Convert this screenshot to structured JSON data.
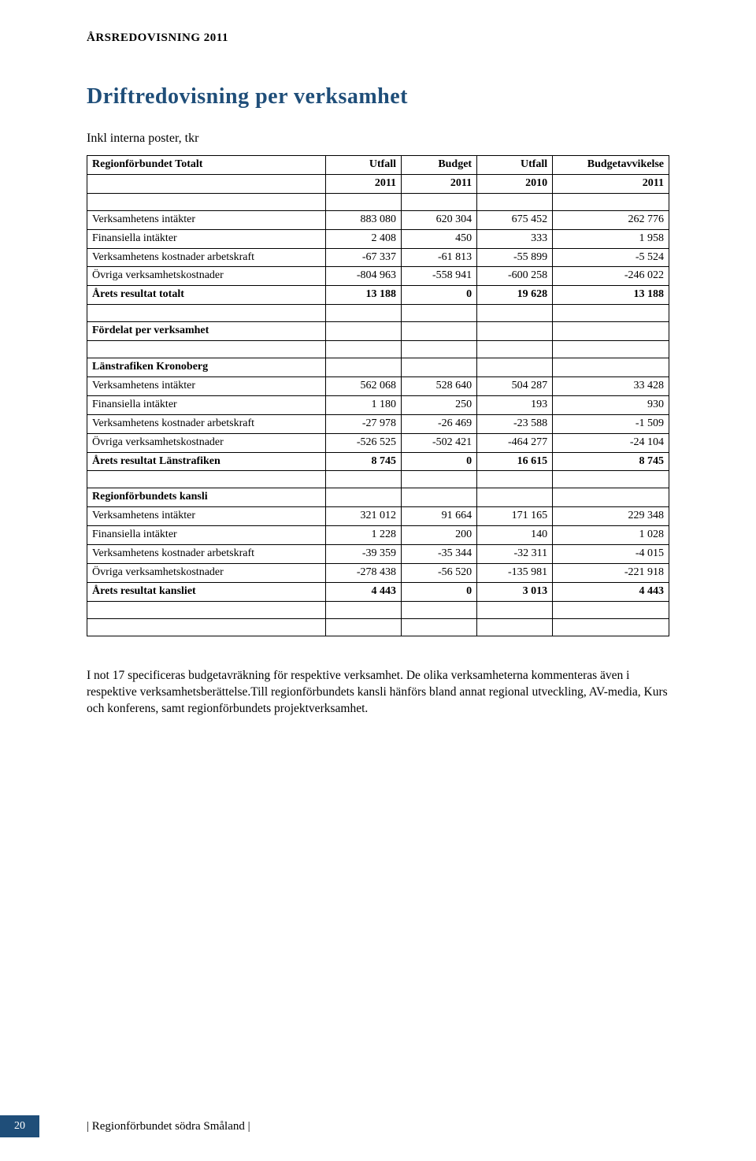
{
  "doc_header": "ÅRSREDOVISNING 2011",
  "main_title": "Driftredovisning per verksamhet",
  "subtitle": "Inkl interna poster, tkr",
  "colors": {
    "title_color": "#1f4e79",
    "footer_bg": "#1f4e79",
    "border": "#000000",
    "text": "#000000",
    "background": "#ffffff"
  },
  "table": {
    "header1": {
      "c1": "Regionförbundet Totalt",
      "c2": "Utfall",
      "c3": "Budget",
      "c4": "Utfall",
      "c5": "Budgetavvikelse"
    },
    "header2": {
      "c1": "",
      "c2": "2011",
      "c3": "2011",
      "c4": "2010",
      "c5": "2011"
    },
    "groups": [
      {
        "section_label": "",
        "rows": [
          {
            "label": "Verksamhetens intäkter",
            "v": [
              "883 080",
              "620 304",
              "675 452",
              "262 776"
            ]
          },
          {
            "label": "Finansiella intäkter",
            "v": [
              "2 408",
              "450",
              "333",
              "1 958"
            ]
          },
          {
            "label": "Verksamhetens kostnader arbetskraft",
            "v": [
              "-67 337",
              "-61 813",
              "-55 899",
              "-5 524"
            ]
          },
          {
            "label": "Övriga verksamhetskostnader",
            "v": [
              "-804 963",
              "-558 941",
              "-600 258",
              "-246 022"
            ]
          }
        ],
        "total": {
          "label": "Årets resultat totalt",
          "v": [
            "13 188",
            "0",
            "19 628",
            "13 188"
          ]
        }
      },
      {
        "section_label": "Fördelat per verksamhet",
        "rows": [],
        "total": null
      },
      {
        "section_label": "Länstrafiken Kronoberg",
        "rows": [
          {
            "label": "Verksamhetens intäkter",
            "v": [
              "562 068",
              "528 640",
              "504 287",
              "33 428"
            ]
          },
          {
            "label": "Finansiella intäkter",
            "v": [
              "1 180",
              "250",
              "193",
              "930"
            ]
          },
          {
            "label": "Verksamhetens kostnader arbetskraft",
            "v": [
              "-27 978",
              "-26 469",
              "-23 588",
              "-1 509"
            ]
          },
          {
            "label": "Övriga verksamhetskostnader",
            "v": [
              "-526 525",
              "-502 421",
              "-464 277",
              "-24 104"
            ]
          }
        ],
        "total": {
          "label": "Årets resultat Länstrafiken",
          "v": [
            "8 745",
            "0",
            "16 615",
            "8 745"
          ]
        }
      },
      {
        "section_label": "Regionförbundets kansli",
        "rows": [
          {
            "label": "Verksamhetens intäkter",
            "v": [
              "321 012",
              "91 664",
              "171 165",
              "229 348"
            ]
          },
          {
            "label": "Finansiella intäkter",
            "v": [
              "1 228",
              "200",
              "140",
              "1 028"
            ]
          },
          {
            "label": "Verksamhetens kostnader arbetskraft",
            "v": [
              "-39 359",
              "-35 344",
              "-32 311",
              "-4 015"
            ]
          },
          {
            "label": "Övriga verksamhetskostnader",
            "v": [
              "-278 438",
              "-56 520",
              "-135 981",
              "-221 918"
            ]
          }
        ],
        "total": {
          "label": "Årets resultat kansliet",
          "v": [
            "4 443",
            "0",
            "3 013",
            "4 443"
          ]
        }
      }
    ]
  },
  "body_text": "I not 17 specificeras budgetavräkning för respektive verksamhet. De olika verksamheterna kommenteras även i respektive verksamhetsberättelse.Till regionförbundets kansli hänförs bland annat regional utveckling, AV-media, Kurs och konferens, samt regionförbundets projektverksamhet.",
  "footer": {
    "page_number": "20",
    "text": "| Regionförbundet södra Småland |"
  }
}
